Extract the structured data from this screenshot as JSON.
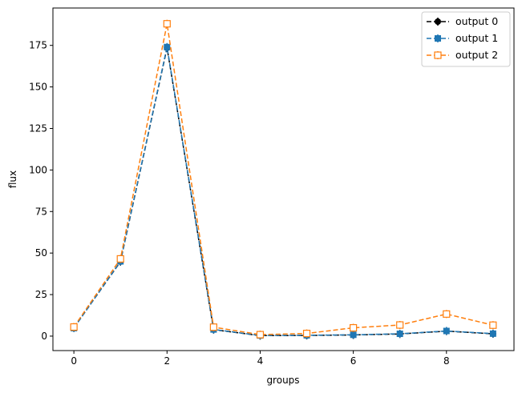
{
  "chart_data": {
    "type": "line",
    "title": "",
    "xlabel": "groups",
    "ylabel": "flux",
    "xlim": [
      -0.45,
      9.45
    ],
    "ylim": [
      -8.7,
      197.5
    ],
    "x_ticks": [
      0,
      2,
      4,
      6,
      8
    ],
    "y_ticks": [
      0,
      25,
      50,
      75,
      100,
      125,
      150,
      175
    ],
    "grid": false,
    "legend_position": "top-right",
    "x": [
      0,
      1,
      2,
      3,
      4,
      5,
      6,
      7,
      8,
      9
    ],
    "series": [
      {
        "name": "output 0",
        "color": "#000000",
        "marker": "circle",
        "values": [
          5.0,
          44.8,
          173.5,
          3.9,
          0.3,
          0.4,
          0.7,
          1.3,
          3.0,
          1.4
        ]
      },
      {
        "name": "output 1",
        "color": "#1f77b4",
        "marker": "square",
        "values": [
          4.8,
          45.0,
          174.0,
          4.0,
          0.4,
          0.5,
          0.8,
          1.4,
          3.1,
          1.5
        ]
      },
      {
        "name": "output 2",
        "color": "#ff7f0e",
        "marker": "open-square",
        "values": [
          5.5,
          46.5,
          188.0,
          5.4,
          0.9,
          1.6,
          5.0,
          6.7,
          13.3,
          6.6
        ]
      }
    ]
  }
}
